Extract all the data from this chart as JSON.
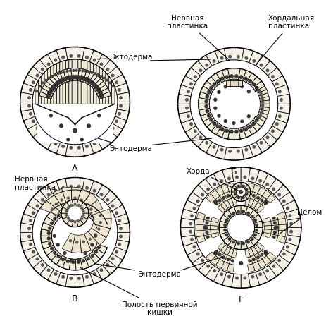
{
  "background_color": "#ffffff",
  "labels": {
    "A": "А",
    "B": "Б",
    "C": "В",
    "D": "Г"
  },
  "annotations": {
    "ektoderm": "Эктодерма",
    "entoderm": "Энтодерма",
    "nervnaya_top": "Нервная\nпластинка",
    "khordalnaya": "Хордальная\nпластинка",
    "nervnaya_left": "Нервная\nпластинка",
    "khorda": "Хорда",
    "entoderm2": "Энтодерма",
    "tselom": "Целом",
    "polost": "Полость первичной\nкишки"
  },
  "fig_width": 4.64,
  "fig_height": 4.62,
  "dpi": 100
}
